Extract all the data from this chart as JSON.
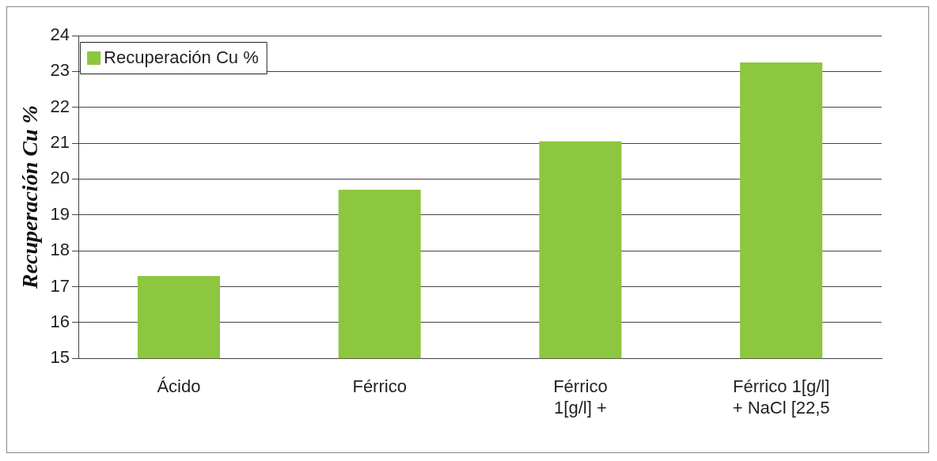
{
  "chart_data": {
    "type": "bar",
    "ylabel": "Recuperación Cu %",
    "categories": [
      "Ácido",
      "Férrico",
      "Férrico\n1[g/l] +",
      "Férrico 1[g/l]\n+ NaCl [22,5"
    ],
    "series": [
      {
        "name": "Recuperación Cu %",
        "color": "#8dc63f",
        "values": [
          17.3,
          19.7,
          21.05,
          23.25
        ]
      }
    ],
    "ylim": [
      15,
      24
    ],
    "yticks": [
      15,
      16,
      17,
      18,
      19,
      20,
      21,
      22,
      23,
      24
    ],
    "grid": "y",
    "legend": "top left"
  }
}
